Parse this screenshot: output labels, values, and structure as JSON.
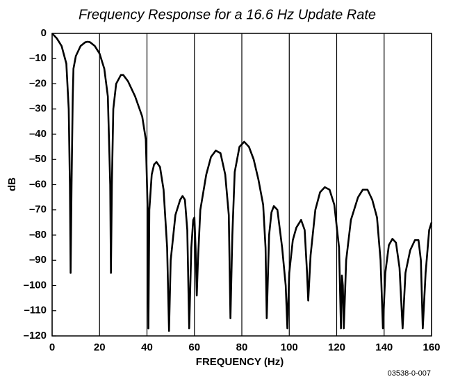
{
  "chart_data": {
    "type": "line",
    "title": "Frequency Response for a 16.6 Hz Update Rate",
    "x_label": "FREQUENCY (Hz)",
    "y_label": "dB",
    "footnote": "03538-0-007",
    "color": "#000000",
    "grid": true,
    "xlim": [
      0,
      160
    ],
    "ylim": [
      -120,
      0
    ],
    "xticks": [
      0,
      20,
      40,
      60,
      80,
      100,
      120,
      140,
      160
    ],
    "yticks": [
      0,
      {
        "value": -10,
        "label": "–10"
      },
      {
        "value": -20,
        "label": "–20"
      },
      {
        "value": -30,
        "label": "–30"
      },
      {
        "value": -40,
        "label": "–40"
      },
      {
        "value": -50,
        "label": "–50"
      },
      {
        "value": -60,
        "label": "–60"
      },
      {
        "value": -70,
        "label": "–70"
      },
      {
        "value": -80,
        "label": "–80"
      },
      {
        "value": -90,
        "label": "–90"
      },
      {
        "value": -100,
        "label": "–100"
      },
      {
        "value": -110,
        "label": "–110"
      },
      {
        "value": -120,
        "label": "–120"
      }
    ],
    "x": [
      0,
      2,
      4,
      6,
      7,
      7.5,
      7.8,
      8.2,
      8.7,
      9,
      10,
      12,
      14,
      15,
      16,
      18,
      20,
      22,
      23.5,
      24.5,
      24.8,
      25.2,
      25.8,
      27,
      29,
      30,
      32,
      35,
      38,
      39.5,
      40.3,
      40.6,
      41,
      42,
      43,
      44,
      45.5,
      47,
      48.5,
      49.3,
      50,
      52,
      54,
      55,
      56,
      57,
      57.8,
      58.7,
      59.5,
      60,
      60.5,
      61,
      61.5,
      62.5,
      65,
      67,
      69,
      71,
      73,
      74.5,
      75.2,
      76,
      77,
      79,
      81,
      83,
      85,
      87,
      89,
      90,
      90.5,
      91.5,
      92.5,
      93.5,
      95,
      97,
      98.5,
      99.2,
      100,
      101.5,
      103,
      105,
      106.5,
      107.5,
      108,
      109,
      111,
      113,
      115,
      117,
      119,
      121,
      121.8,
      122.2,
      122.6,
      123,
      124,
      126,
      129,
      131,
      133,
      135,
      137,
      138.5,
      139.5,
      140.5,
      142,
      143.5,
      145,
      146.5,
      147.8,
      149,
      151,
      153,
      154.5,
      155.5,
      156.3,
      157.5,
      159,
      160
    ],
    "values": [
      0,
      -2,
      -5,
      -12,
      -30,
      -60,
      -95,
      -60,
      -25,
      -14,
      -9,
      -5,
      -3.5,
      -3.3,
      -3.5,
      -5,
      -8,
      -14,
      -25,
      -60,
      -95,
      -60,
      -30,
      -20,
      -16.5,
      -16.5,
      -19,
      -25,
      -33,
      -42,
      -70,
      -117,
      -70,
      -56,
      -52,
      -51,
      -53,
      -62,
      -85,
      -118,
      -90,
      -72,
      -66,
      -64.5,
      -66,
      -78,
      -117,
      -85,
      -74,
      -73,
      -85,
      -104,
      -90,
      -70,
      -56,
      -49,
      -46.5,
      -47.5,
      -56,
      -72,
      -113,
      -80,
      -55,
      -45,
      -43,
      -45,
      -50,
      -58,
      -68,
      -85,
      -113,
      -80,
      -71,
      -68.5,
      -70,
      -85,
      -100,
      -117,
      -95,
      -82,
      -77,
      -74,
      -78,
      -95,
      -106,
      -88,
      -70,
      -63,
      -61,
      -62,
      -68,
      -85,
      -117,
      -96,
      -100,
      -117,
      -90,
      -74,
      -65,
      -62,
      -62,
      -66,
      -73,
      -90,
      -117,
      -95,
      -84,
      -81.5,
      -83,
      -93,
      -117,
      -95,
      -86,
      -82,
      -82,
      -90,
      -117,
      -95,
      -78,
      -75
    ]
  }
}
